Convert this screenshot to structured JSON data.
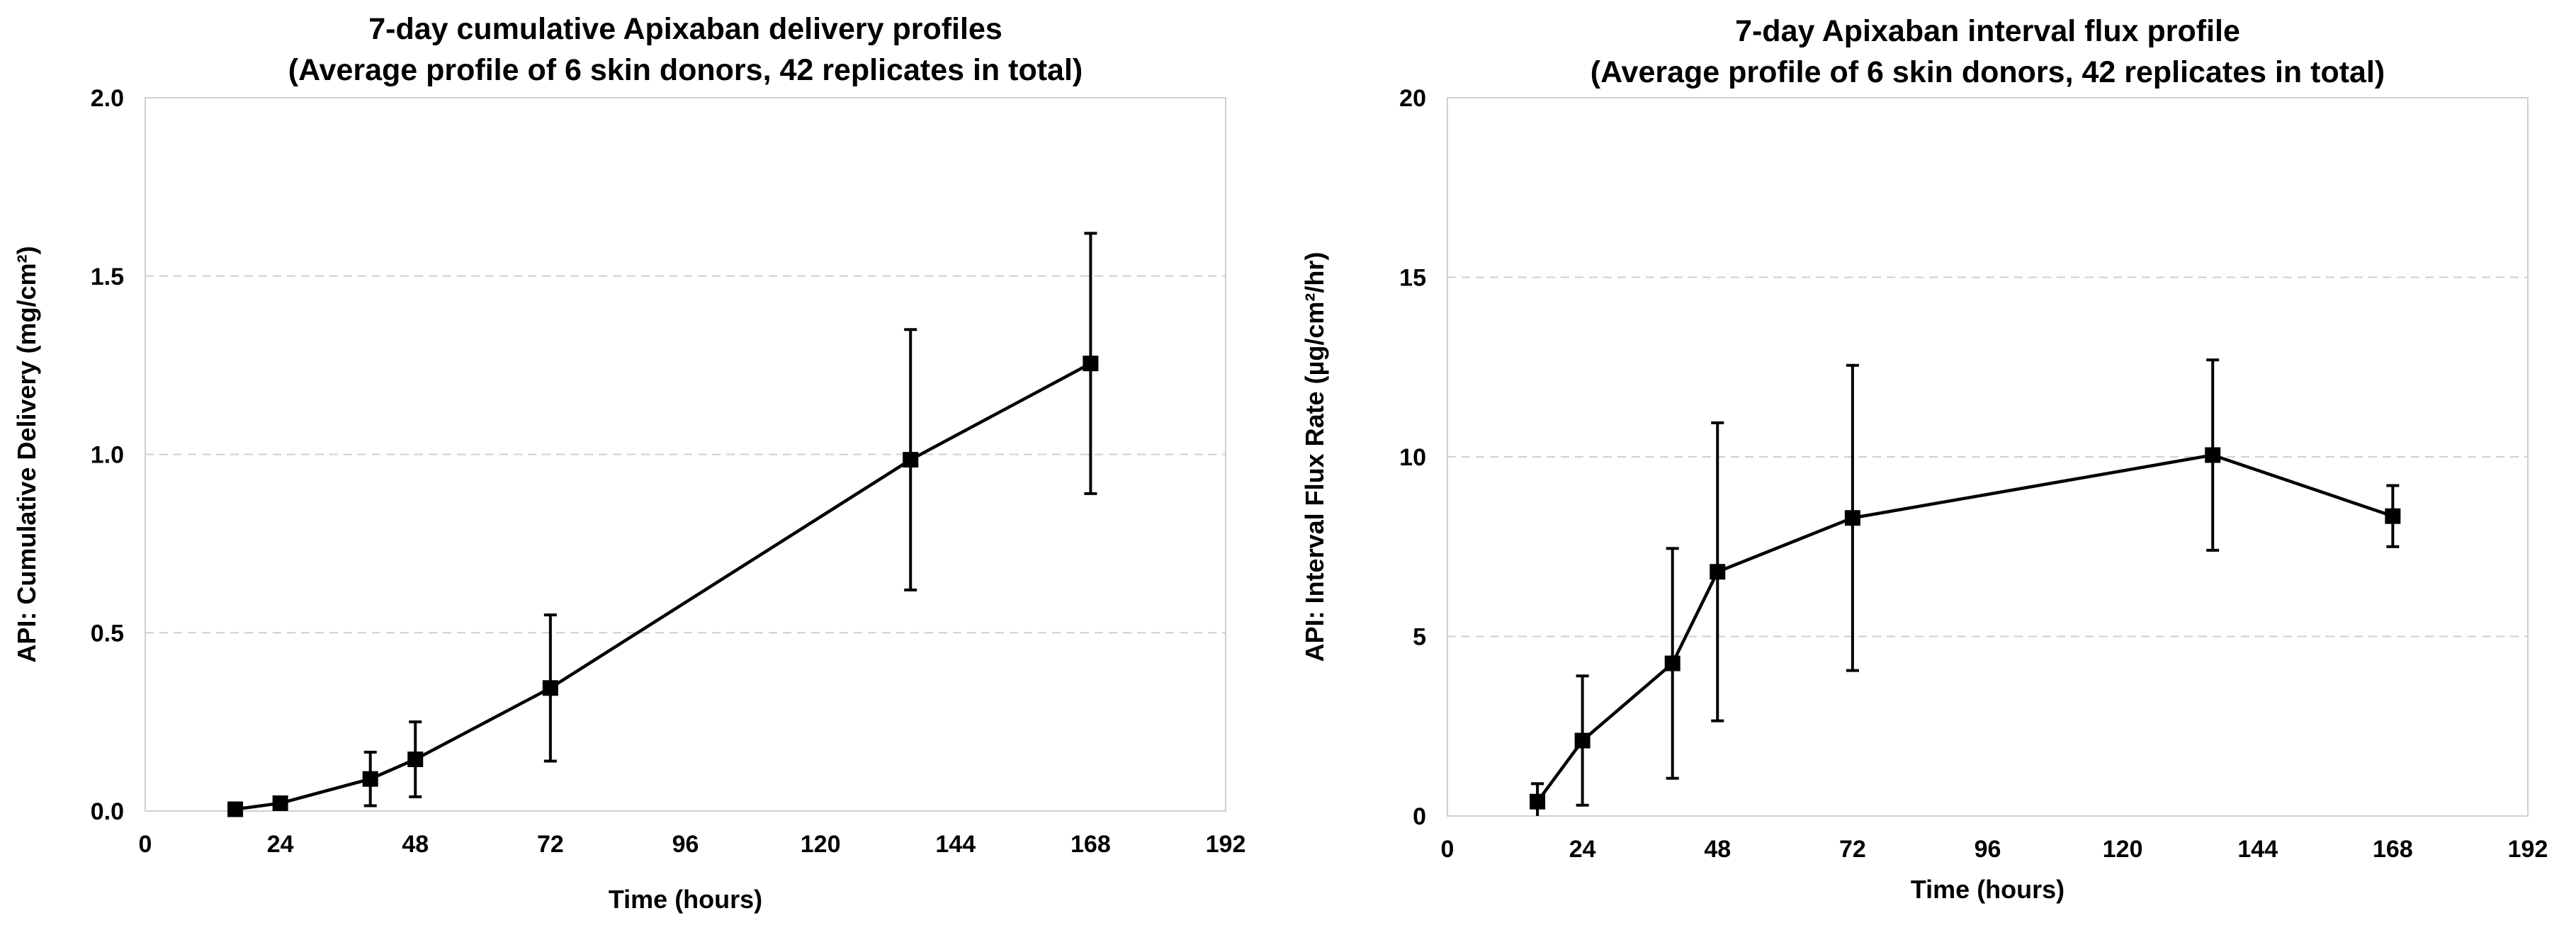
{
  "chart_data": [
    {
      "type": "line",
      "title": [
        "7-day cumulative Apixaban delivery profiles",
        "(Average profile of 6 skin donors, 42 replicates in total)"
      ],
      "xlabel": "Time (hours)",
      "ylabel": "API: Cumulative Delivery (mg/cm²)",
      "xlim": [
        0,
        192
      ],
      "ylim": [
        0,
        2.0
      ],
      "xticks": [
        0,
        24,
        48,
        72,
        96,
        120,
        144,
        168,
        192
      ],
      "xtick_labels": [
        "0",
        "24",
        "48",
        "72",
        "96",
        "120",
        "144",
        "168",
        "192"
      ],
      "yticks": [
        0,
        0.5,
        1.0,
        1.5,
        2.0
      ],
      "ytick_labels": [
        "0.0",
        "0.5",
        "1.0",
        "1.5",
        "2.0"
      ],
      "grid": "horizontal-dashed",
      "series": [
        {
          "x": [
            16,
            24,
            40,
            48,
            72,
            136,
            168
          ],
          "y": [
            0.005,
            0.022,
            0.09,
            0.145,
            0.345,
            0.985,
            1.255
          ],
          "err": [
            0.005,
            0.015,
            0.075,
            0.105,
            0.205,
            0.365,
            0.365
          ]
        }
      ]
    },
    {
      "type": "line",
      "title": [
        "7-day Apixaban interval flux profile",
        "(Average profile of 6 skin donors, 42 replicates in total)"
      ],
      "xlabel": "Time (hours)",
      "ylabel": "API: Interval Flux Rate (µg/cm²/hr)",
      "xlim": [
        0,
        192
      ],
      "ylim": [
        0,
        20
      ],
      "xticks": [
        0,
        24,
        48,
        72,
        96,
        120,
        144,
        168,
        192
      ],
      "xtick_labels": [
        "0",
        "24",
        "48",
        "72",
        "96",
        "120",
        "144",
        "168",
        "192"
      ],
      "yticks": [
        0,
        5,
        10,
        15,
        20
      ],
      "ytick_labels": [
        "0",
        "5",
        "10",
        "15",
        "20"
      ],
      "grid": "horizontal-dashed",
      "series": [
        {
          "x": [
            16,
            24,
            40,
            48,
            72,
            136,
            168
          ],
          "y": [
            0.4,
            2.1,
            4.25,
            6.8,
            8.3,
            10.05,
            8.35
          ],
          "err": [
            0.5,
            1.8,
            3.2,
            4.15,
            4.25,
            2.65,
            0.85
          ]
        }
      ]
    }
  ]
}
